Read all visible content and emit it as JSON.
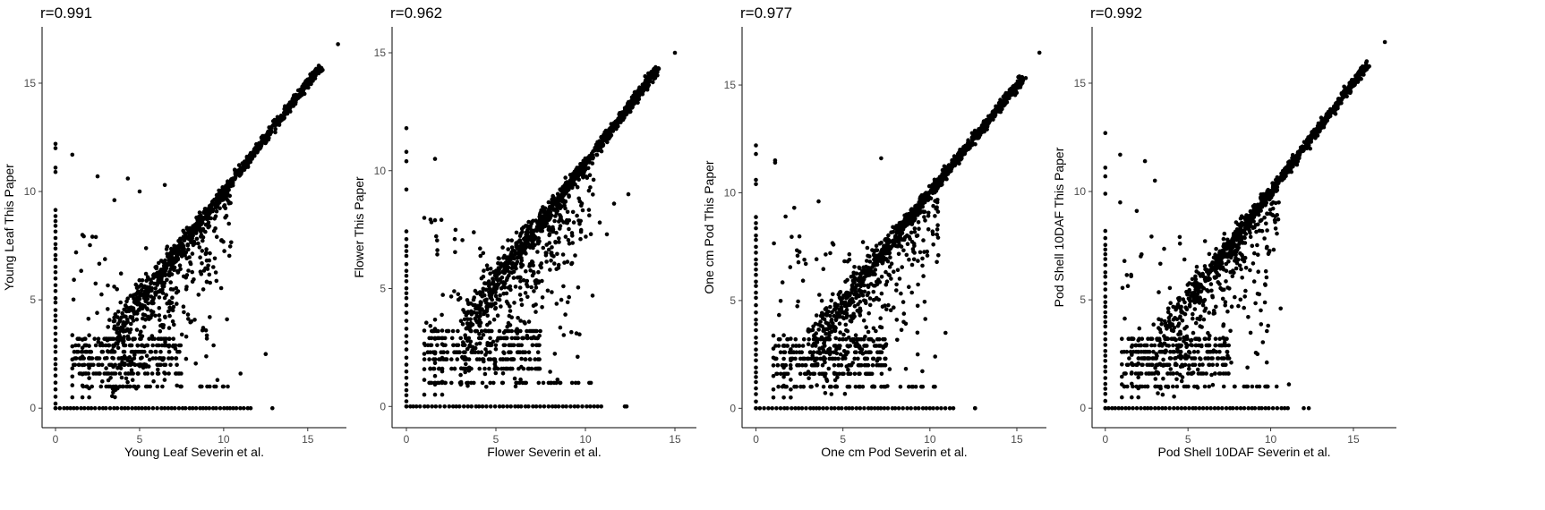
{
  "chart_data": [
    {
      "type": "scatter",
      "title": "r=0.991",
      "xlabel": "Young Leaf Severin et al.",
      "ylabel": "Young Leaf This Paper",
      "xlim": [
        -0.8,
        17.3
      ],
      "ylim": [
        -0.9,
        17.6
      ],
      "xticks": [
        0,
        5,
        10,
        15
      ],
      "yticks": [
        0,
        5,
        10,
        15
      ],
      "grid": false,
      "legend": "none",
      "point_color": "#000000",
      "x_max": 16.8,
      "y_max": 16.8,
      "outliers": [
        {
          "x": 0,
          "y": 12.2
        },
        {
          "x": 0,
          "y": 12.0
        },
        {
          "x": 0,
          "y": 11.1
        },
        {
          "x": 0,
          "y": 10.9
        },
        {
          "x": 1.0,
          "y": 11.7
        },
        {
          "x": 2.5,
          "y": 10.7
        },
        {
          "x": 4.3,
          "y": 10.6
        },
        {
          "x": 5.0,
          "y": 10.0
        },
        {
          "x": 3.5,
          "y": 9.6
        },
        {
          "x": 6.5,
          "y": 10.3
        },
        {
          "x": 2.4,
          "y": 7.9
        },
        {
          "x": 1.6,
          "y": 8.0
        },
        {
          "x": 12.5,
          "y": 2.5
        },
        {
          "x": 11.0,
          "y": 1.6
        },
        {
          "x": 9.4,
          "y": 2.9
        },
        {
          "x": 10.2,
          "y": 4.1
        }
      ],
      "zero_column_max": 9.3,
      "zero_row_max": 12.9
    },
    {
      "type": "scatter",
      "title": "r=0.962",
      "xlabel": "Flower Severin et al.",
      "ylabel": "Flower This Paper",
      "xlim": [
        -0.8,
        16.2
      ],
      "ylim": [
        -0.9,
        16.1
      ],
      "xticks": [
        0,
        5,
        10,
        15
      ],
      "yticks": [
        0,
        5,
        10,
        15
      ],
      "grid": false,
      "legend": "none",
      "point_color": "#000000",
      "x_max": 15.0,
      "y_max": 15.0,
      "outliers": [
        {
          "x": 0,
          "y": 11.8
        },
        {
          "x": 0,
          "y": 10.8
        },
        {
          "x": 0,
          "y": 10.4
        },
        {
          "x": 0,
          "y": 9.2
        },
        {
          "x": 1.6,
          "y": 10.5
        },
        {
          "x": 1.0,
          "y": 8.0
        },
        {
          "x": 1.6,
          "y": 7.9
        },
        {
          "x": 2.7,
          "y": 7.1
        },
        {
          "x": 12.4,
          "y": 9.0
        },
        {
          "x": 11.6,
          "y": 8.6
        },
        {
          "x": 10.8,
          "y": 7.8
        },
        {
          "x": 11.2,
          "y": 7.3
        },
        {
          "x": 12.2,
          "y": 0
        },
        {
          "x": 9.5,
          "y": 3.1
        },
        {
          "x": 10.4,
          "y": 4.7
        }
      ],
      "zero_column_max": 7.6,
      "zero_row_max": 12.3
    },
    {
      "type": "scatter",
      "title": "r=0.977",
      "xlabel": "One cm Pod Severin et al.",
      "ylabel": "One cm Pod This Paper",
      "xlim": [
        -0.8,
        16.7
      ],
      "ylim": [
        -0.9,
        17.7
      ],
      "xticks": [
        0,
        5,
        10,
        15
      ],
      "yticks": [
        0,
        5,
        10,
        15
      ],
      "grid": false,
      "legend": "none",
      "point_color": "#000000",
      "x_max": 16.3,
      "y_max": 16.5,
      "outliers": [
        {
          "x": 0,
          "y": 12.2
        },
        {
          "x": 0,
          "y": 11.8
        },
        {
          "x": 0,
          "y": 10.6
        },
        {
          "x": 0,
          "y": 10.4
        },
        {
          "x": 1.1,
          "y": 11.4
        },
        {
          "x": 1.1,
          "y": 11.5
        },
        {
          "x": 2.2,
          "y": 9.3
        },
        {
          "x": 3.6,
          "y": 9.6
        },
        {
          "x": 7.2,
          "y": 11.6
        },
        {
          "x": 1.7,
          "y": 8.9
        },
        {
          "x": 12.6,
          "y": 0
        },
        {
          "x": 10.2,
          "y": 7.6
        },
        {
          "x": 9.3,
          "y": 2.5
        },
        {
          "x": 10.3,
          "y": 2.4
        },
        {
          "x": 10.9,
          "y": 3.5
        }
      ],
      "zero_column_max": 9.1,
      "zero_row_max": 12.6
    },
    {
      "type": "scatter",
      "title": "r=0.992",
      "xlabel": "Pod Shell 10DAF Severin et al.",
      "ylabel": "Pod Shell 10DAF This Paper",
      "xlim": [
        -0.8,
        17.6
      ],
      "ylim": [
        -0.9,
        17.6
      ],
      "xticks": [
        0,
        5,
        10,
        15
      ],
      "yticks": [
        0,
        5,
        10,
        15
      ],
      "grid": false,
      "legend": "none",
      "point_color": "#000000",
      "x_max": 16.9,
      "y_max": 16.9,
      "outliers": [
        {
          "x": 0,
          "y": 12.7
        },
        {
          "x": 0,
          "y": 11.1
        },
        {
          "x": 0,
          "y": 10.7
        },
        {
          "x": 0,
          "y": 9.9
        },
        {
          "x": 0.9,
          "y": 11.7
        },
        {
          "x": 2.4,
          "y": 11.4
        },
        {
          "x": 3.0,
          "y": 10.5
        },
        {
          "x": 1.9,
          "y": 9.1
        },
        {
          "x": 0.9,
          "y": 9.5
        },
        {
          "x": 4.5,
          "y": 7.9
        },
        {
          "x": 11.1,
          "y": 1.1
        },
        {
          "x": 12.0,
          "y": 0
        },
        {
          "x": 9.2,
          "y": 2.5
        },
        {
          "x": 10.6,
          "y": 4.6
        }
      ],
      "zero_column_max": 8.4,
      "zero_row_max": 12.3
    }
  ]
}
